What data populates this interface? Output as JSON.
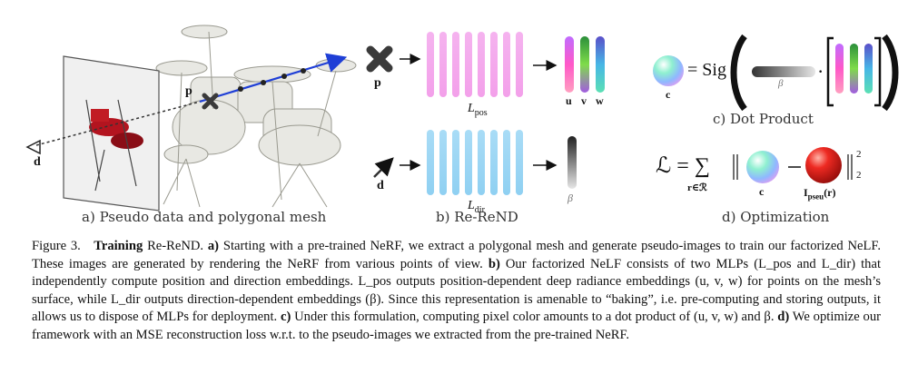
{
  "figure": {
    "panels": {
      "a": "a) Pseudo data and polygonal mesh",
      "b": "b) Re-ReND",
      "c": "c) Dot Product",
      "d": "d) Optimization"
    },
    "labels": {
      "point": "p",
      "point_b": "p",
      "dir_a": "d",
      "dir_b": "d",
      "l_pos": "L",
      "l_pos_sub": "pos",
      "l_dir": "L",
      "l_dir_sub": "dir",
      "u": "u",
      "v": "v",
      "w": "w",
      "beta": "β",
      "c_label": "c",
      "sig_eq": "= Sig",
      "dot": "·",
      "loss_lhs": "ℒ = ∑",
      "loss_sub": "r∈ℛ",
      "ipseu": "I",
      "ipseu_sub": "pseu",
      "ipseu_r": "(r)",
      "norm_sup": "2",
      "norm_sub": "2"
    }
  },
  "caption": {
    "fig_label": "Figure 3.",
    "title_bold": "Training",
    "title_rest": " Re-ReND.",
    "a_label": "a)",
    "a_text": " Starting with a pre-trained NeRF, we extract a polygonal mesh and generate pseudo-images to train our factorized NeLF. These images are generated by rendering the NeRF from various points of view.",
    "b_label": "b)",
    "b_text": " Our factorized NeLF consists of two MLPs (L_pos and L_dir) that independently compute position and direction embeddings. L_pos outputs position-dependent deep radiance embeddings (u, v, w) for points on the mesh’s surface, while L_dir outputs direction-dependent embeddings (β). Since this representation is amenable to “baking”, i.e. pre-computing and storing outputs, it allows us to dispose of MLPs for deployment.",
    "c_label": "c)",
    "c_text": " Under this formulation, computing pixel color amounts to a dot product of (u, v, w) and β.",
    "d_label": "d)",
    "d_text": " We optimize our framework with an MSE reconstruction loss w.r.t. to the pseudo-images we extracted from the pre-trained NeRF."
  }
}
